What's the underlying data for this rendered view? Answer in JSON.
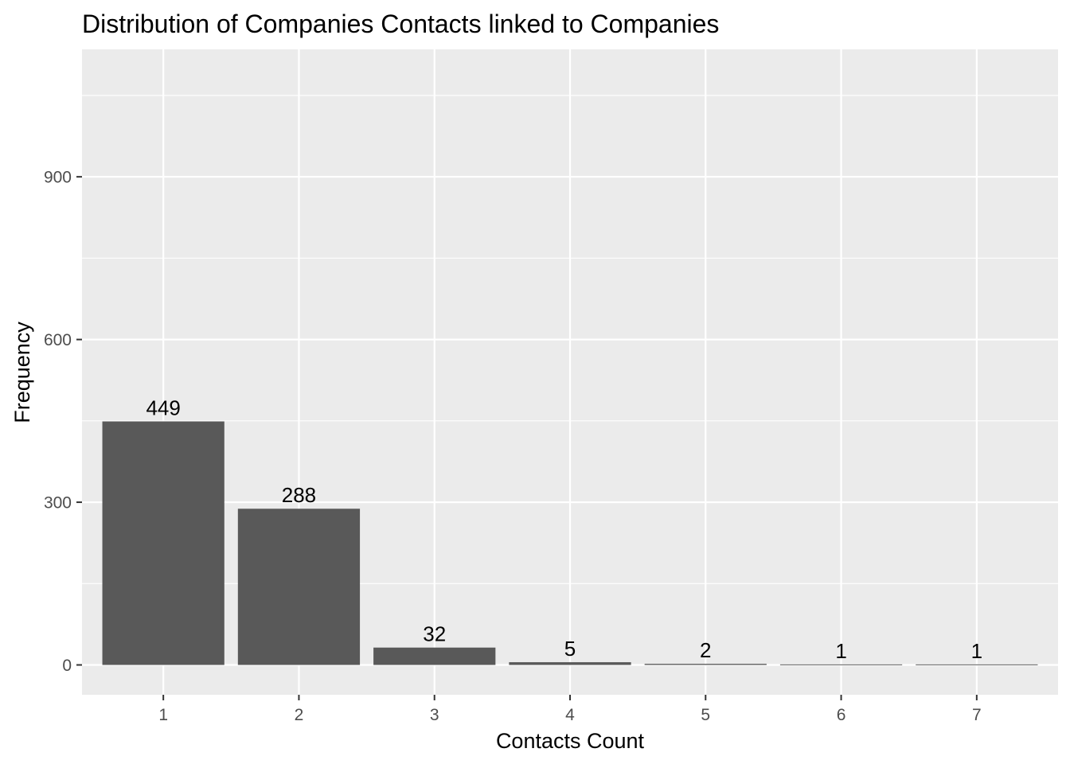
{
  "chart_data": {
    "type": "bar",
    "title": "Distribution of Companies Contacts linked to Companies",
    "xlabel": "Contacts Count",
    "ylabel": "Frequency",
    "categories": [
      "1",
      "2",
      "3",
      "4",
      "5",
      "6",
      "7"
    ],
    "values": [
      449,
      288,
      32,
      5,
      2,
      1,
      1
    ],
    "data_labels": [
      "449",
      "288",
      "32",
      "5",
      "2",
      "1",
      "1"
    ],
    "yticks": [
      0,
      300,
      600,
      900
    ],
    "ylim": [
      -55,
      1135
    ],
    "grid": true,
    "legend": "none",
    "colors": {
      "panel_background": "#ebebeb",
      "grid": "#ffffff",
      "bar_fill": "#595959",
      "tick_text": "#4d4d4d",
      "text": "#000000"
    }
  }
}
